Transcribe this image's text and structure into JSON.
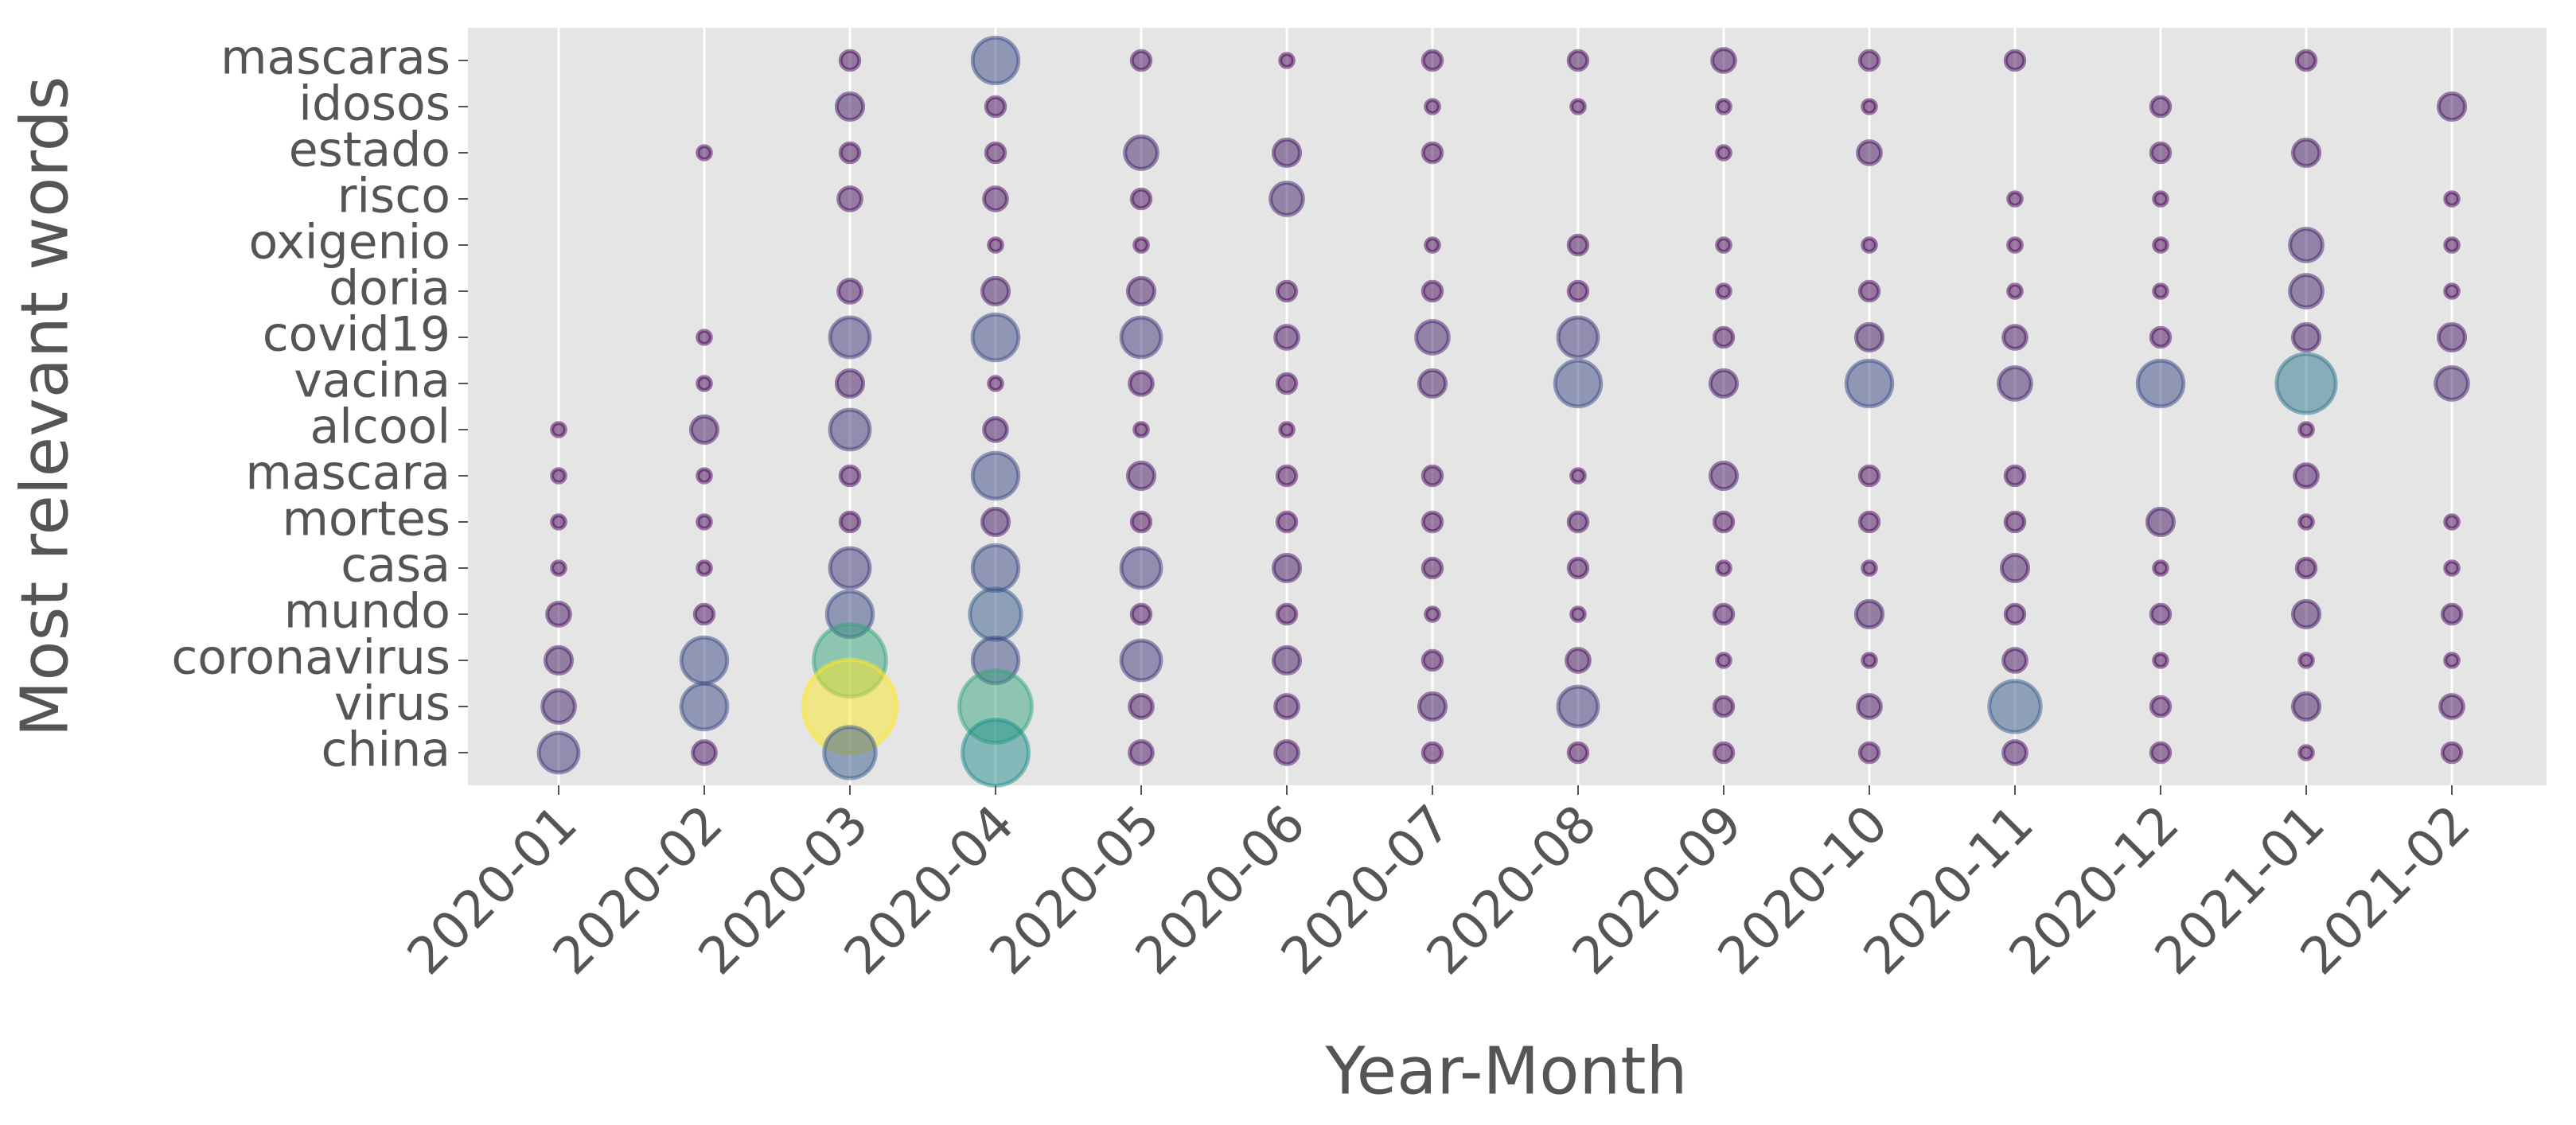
{
  "chart_data": {
    "type": "bubble",
    "x_label": "Year-Month",
    "y_label": "Most relevant words",
    "x_categories": [
      "2020-01",
      "2020-02",
      "2020-03",
      "2020-04",
      "2020-05",
      "2020-06",
      "2020-07",
      "2020-08",
      "2020-09",
      "2020-10",
      "2020-11",
      "2020-12",
      "2021-01",
      "2021-02"
    ],
    "y_categories": [
      "mascaras",
      "idosos",
      "estado",
      "risco",
      "oxigenio",
      "doria",
      "covid19",
      "vacina",
      "alcool",
      "mascara",
      "mortes",
      "casa",
      "mundo",
      "coronavirus",
      "virus",
      "china"
    ],
    "sizes": [
      [
        null,
        null,
        2,
        12,
        2,
        1,
        2,
        2,
        3,
        2,
        2,
        null,
        2,
        null
      ],
      [
        null,
        null,
        4,
        2,
        null,
        null,
        1,
        1,
        1,
        1,
        null,
        2,
        null,
        4
      ],
      [
        null,
        1,
        2,
        2,
        6,
        4,
        2,
        null,
        1,
        3,
        null,
        2,
        4,
        null
      ],
      [
        null,
        null,
        3,
        3,
        2,
        6,
        null,
        null,
        null,
        null,
        1,
        1,
        null,
        1
      ],
      [
        null,
        null,
        null,
        1,
        1,
        null,
        1,
        2,
        1,
        1,
        1,
        1,
        6,
        1
      ],
      [
        null,
        null,
        3,
        4,
        4,
        2,
        2,
        2,
        1,
        2,
        1,
        1,
        6,
        1
      ],
      [
        null,
        1,
        9,
        12,
        9,
        3,
        6,
        9,
        2,
        4,
        3,
        2,
        4,
        4
      ],
      [
        null,
        1,
        4,
        1,
        3,
        2,
        4,
        12,
        4,
        12,
        6,
        12,
        20,
        6
      ],
      [
        1,
        4,
        9,
        3,
        1,
        1,
        null,
        null,
        null,
        null,
        null,
        null,
        1,
        null
      ],
      [
        1,
        1,
        2,
        12,
        4,
        2,
        2,
        1,
        4,
        2,
        2,
        null,
        3,
        null
      ],
      [
        1,
        1,
        2,
        4,
        2,
        2,
        2,
        2,
        2,
        2,
        2,
        4,
        1,
        1
      ],
      [
        1,
        1,
        9,
        12,
        9,
        4,
        2,
        2,
        1,
        1,
        4,
        1,
        2,
        1
      ],
      [
        3,
        2,
        12,
        15,
        2,
        2,
        1,
        1,
        2,
        4,
        2,
        2,
        4,
        2
      ],
      [
        4,
        12,
        30,
        12,
        9,
        4,
        2,
        3,
        1,
        1,
        3,
        1,
        1,
        1
      ],
      [
        6,
        12,
        50,
        30,
        3,
        3,
        4,
        9,
        2,
        3,
        15,
        2,
        4,
        3
      ],
      [
        9,
        3,
        15,
        25,
        3,
        3,
        2,
        2,
        2,
        2,
        3,
        2,
        1,
        2
      ]
    ],
    "colormap": "viridis",
    "marker_alpha": 0.5,
    "grid": "x"
  }
}
